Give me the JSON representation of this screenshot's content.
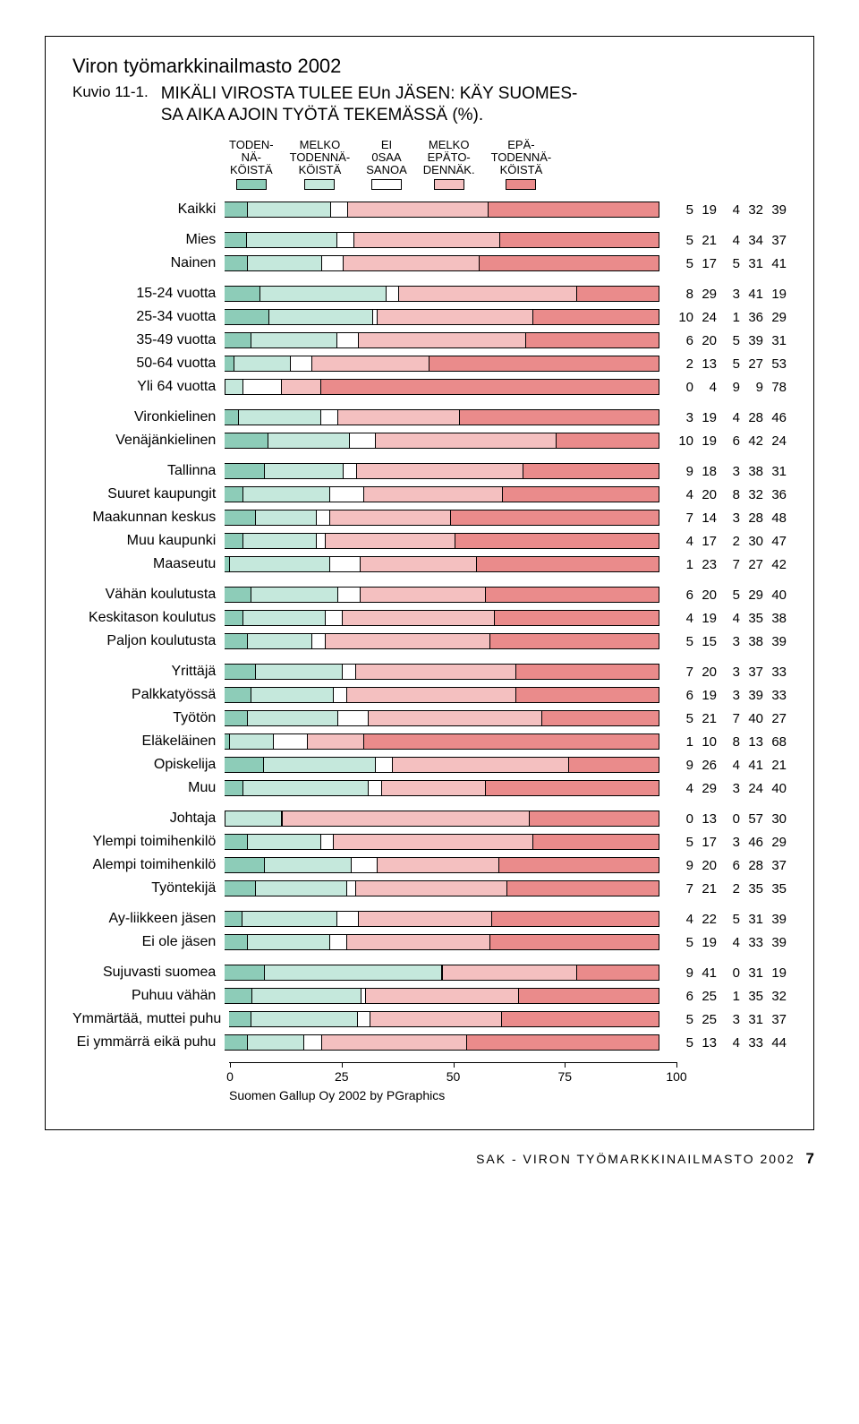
{
  "title": "Viron työmarkkinailmasto 2002",
  "kuvio": "Kuvio 11-1.",
  "subtitle": "MIKÄLI VIROSTA TULEE EUn JÄSEN: KÄY SUOMES-\nSA AIKA AJOIN TYÖTÄ TEKEMÄSSÄ (%).",
  "legend": [
    {
      "lines": [
        "TODEN-",
        "NÄ-",
        "KÖISTÄ"
      ],
      "color": "#8dccb8"
    },
    {
      "lines": [
        "MELKO",
        "TODENNÄ-",
        "KÖISTÄ"
      ],
      "color": "#c5e8dc"
    },
    {
      "lines": [
        "EI",
        "0SAA",
        "SANOA"
      ],
      "color": "#ffffff"
    },
    {
      "lines": [
        "MELKO",
        "EPÄTO-",
        "DENNÄK."
      ],
      "color": "#f4c0c0"
    },
    {
      "lines": [
        "EPÄ-",
        "TODENNÄ-",
        "KÖISTÄ"
      ],
      "color": "#ea8b8b"
    }
  ],
  "colors": [
    "#8dccb8",
    "#c5e8dc",
    "#ffffff",
    "#f4c0c0",
    "#ea8b8b"
  ],
  "axis": {
    "ticks": [
      0,
      25,
      50,
      75,
      100
    ]
  },
  "credit": "Suomen Gallup Oy 2002 by PGraphics",
  "footer": "SAK - VIRON TYÖMARKKINAILMASTO 2002",
  "page": "7",
  "groups": [
    [
      {
        "label": "Kaikki",
        "v": [
          5,
          19,
          4,
          32,
          39
        ]
      }
    ],
    [
      {
        "label": "Mies",
        "v": [
          5,
          21,
          4,
          34,
          37
        ]
      },
      {
        "label": "Nainen",
        "v": [
          5,
          17,
          5,
          31,
          41
        ]
      }
    ],
    [
      {
        "label": "15-24 vuotta",
        "v": [
          8,
          29,
          3,
          41,
          19
        ]
      },
      {
        "label": "25-34 vuotta",
        "v": [
          10,
          24,
          1,
          36,
          29
        ]
      },
      {
        "label": "35-49 vuotta",
        "v": [
          6,
          20,
          5,
          39,
          31
        ]
      },
      {
        "label": "50-64 vuotta",
        "v": [
          2,
          13,
          5,
          27,
          53
        ]
      },
      {
        "label": "Yli 64 vuotta",
        "v": [
          0,
          4,
          9,
          9,
          78
        ]
      }
    ],
    [
      {
        "label": "Vironkielinen",
        "v": [
          3,
          19,
          4,
          28,
          46
        ]
      },
      {
        "label": "Venäjänkielinen",
        "v": [
          10,
          19,
          6,
          42,
          24
        ]
      }
    ],
    [
      {
        "label": "Tallinna",
        "v": [
          9,
          18,
          3,
          38,
          31
        ]
      },
      {
        "label": "Suuret kaupungit",
        "v": [
          4,
          20,
          8,
          32,
          36
        ]
      },
      {
        "label": "Maakunnan keskus",
        "v": [
          7,
          14,
          3,
          28,
          48
        ]
      },
      {
        "label": "Muu kaupunki",
        "v": [
          4,
          17,
          2,
          30,
          47
        ]
      },
      {
        "label": "Maaseutu",
        "v": [
          1,
          23,
          7,
          27,
          42
        ]
      }
    ],
    [
      {
        "label": "Vähän koulutusta",
        "v": [
          6,
          20,
          5,
          29,
          40
        ]
      },
      {
        "label": "Keskitason koulutus",
        "v": [
          4,
          19,
          4,
          35,
          38
        ]
      },
      {
        "label": "Paljon koulutusta",
        "v": [
          5,
          15,
          3,
          38,
          39
        ]
      }
    ],
    [
      {
        "label": "Yrittäjä",
        "v": [
          7,
          20,
          3,
          37,
          33
        ]
      },
      {
        "label": "Palkkatyössä",
        "v": [
          6,
          19,
          3,
          39,
          33
        ]
      },
      {
        "label": "Työtön",
        "v": [
          5,
          21,
          7,
          40,
          27
        ]
      },
      {
        "label": "Eläkeläinen",
        "v": [
          1,
          10,
          8,
          13,
          68
        ]
      },
      {
        "label": "Opiskelija",
        "v": [
          9,
          26,
          4,
          41,
          21
        ]
      },
      {
        "label": "Muu",
        "v": [
          4,
          29,
          3,
          24,
          40
        ]
      }
    ],
    [
      {
        "label": "Johtaja",
        "v": [
          0,
          13,
          0,
          57,
          30
        ]
      },
      {
        "label": "Ylempi toimihenkilö",
        "v": [
          5,
          17,
          3,
          46,
          29
        ]
      },
      {
        "label": "Alempi toimihenkilö",
        "v": [
          9,
          20,
          6,
          28,
          37
        ]
      },
      {
        "label": "Työntekijä",
        "v": [
          7,
          21,
          2,
          35,
          35
        ]
      }
    ],
    [
      {
        "label": "Ay-liikkeen jäsen",
        "v": [
          4,
          22,
          5,
          31,
          39
        ]
      },
      {
        "label": "Ei ole jäsen",
        "v": [
          5,
          19,
          4,
          33,
          39
        ]
      }
    ],
    [
      {
        "label": "Sujuvasti suomea",
        "v": [
          9,
          41,
          0,
          31,
          19
        ]
      },
      {
        "label": "Puhuu vähän",
        "v": [
          6,
          25,
          1,
          35,
          32
        ]
      },
      {
        "label": "Ymmärtää, muttei puhu",
        "v": [
          5,
          25,
          3,
          31,
          37
        ]
      },
      {
        "label": "Ei ymmärrä eikä puhu",
        "v": [
          5,
          13,
          4,
          33,
          44
        ]
      }
    ]
  ]
}
